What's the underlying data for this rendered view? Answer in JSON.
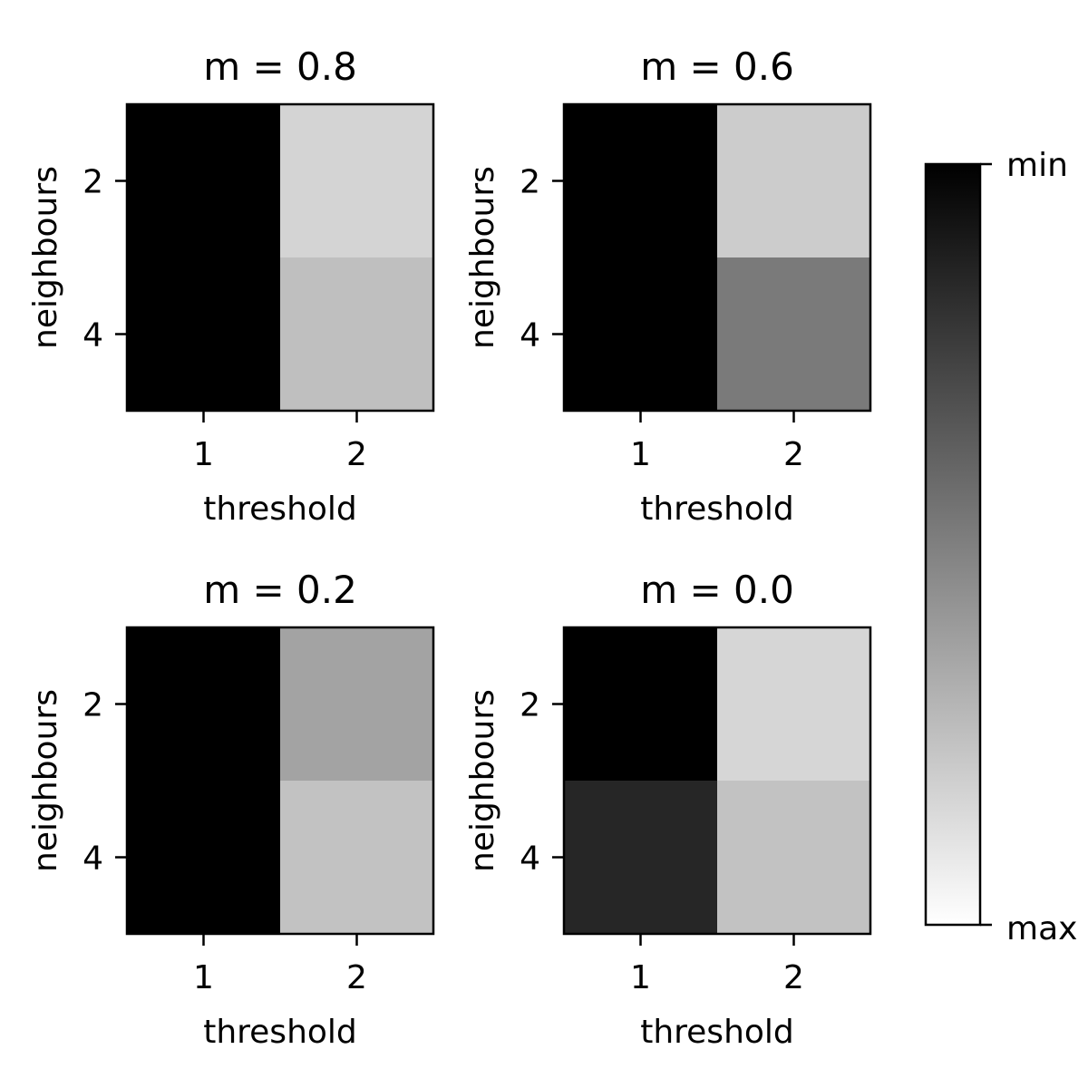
{
  "chart_data": [
    {
      "type": "heatmap",
      "title": "m = 0.8",
      "xlabel": "threshold",
      "ylabel": "neighbours",
      "x_categories": [
        "1",
        "2"
      ],
      "y_categories": [
        "2",
        "4"
      ],
      "values": [
        [
          0.0,
          0.83
        ],
        [
          0.0,
          0.75
        ]
      ]
    },
    {
      "type": "heatmap",
      "title": "m = 0.6",
      "xlabel": "threshold",
      "ylabel": "neighbours",
      "x_categories": [
        "1",
        "2"
      ],
      "y_categories": [
        "2",
        "4"
      ],
      "values": [
        [
          0.0,
          0.8
        ],
        [
          0.0,
          0.48
        ]
      ]
    },
    {
      "type": "heatmap",
      "title": "m = 0.2",
      "xlabel": "threshold",
      "ylabel": "neighbours",
      "x_categories": [
        "1",
        "2"
      ],
      "y_categories": [
        "2",
        "4"
      ],
      "values": [
        [
          0.0,
          0.64
        ],
        [
          0.0,
          0.76
        ]
      ]
    },
    {
      "type": "heatmap",
      "title": "m = 0.0",
      "xlabel": "threshold",
      "ylabel": "neighbours",
      "x_categories": [
        "1",
        "2"
      ],
      "y_categories": [
        "2",
        "4"
      ],
      "values": [
        [
          0.0,
          0.84
        ],
        [
          0.15,
          0.76
        ]
      ]
    }
  ],
  "colorbar": {
    "top_label": "min",
    "bottom_label": "max",
    "colormap": "gray",
    "color_min": "#000000",
    "color_max": "#ffffff"
  }
}
